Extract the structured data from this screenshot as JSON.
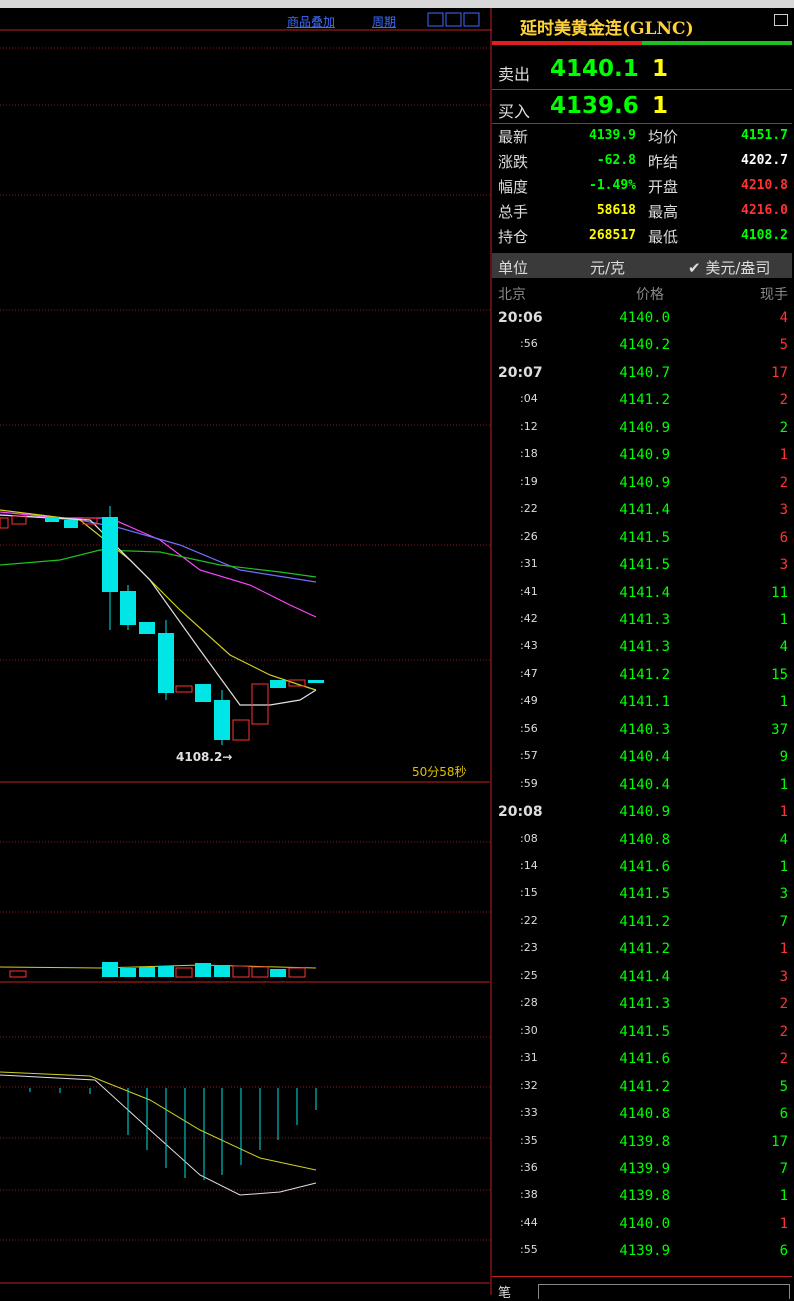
{
  "toolbar": {
    "overlay": "商品叠加",
    "period": "周期"
  },
  "chart": {
    "low_marker": "4108.2→",
    "countdown": "50分58秒"
  },
  "quote": {
    "title": "延时美黄金连(GLNC)",
    "sell": {
      "label": "卖出",
      "price": "4140.1",
      "qty": 1
    },
    "buy": {
      "label": "买入",
      "price": "4139.6",
      "qty": 1
    },
    "stats": [
      {
        "label": "最新",
        "value": "4139.9",
        "color": "#00ff00"
      },
      {
        "label": "均价",
        "value": "4151.7",
        "color": "#00ff00"
      },
      {
        "label": "涨跌",
        "value": "-62.8",
        "color": "#00ff00"
      },
      {
        "label": "昨结",
        "value": "4202.7",
        "color": "#ffffff"
      },
      {
        "label": "幅度",
        "value": "-1.49%",
        "color": "#00ff00"
      },
      {
        "label": "开盘",
        "value": "4210.8",
        "color": "#ff3333"
      },
      {
        "label": "总手",
        "value": "58618",
        "color": "#ffff00"
      },
      {
        "label": "最高",
        "value": "4216.0",
        "color": "#ff3333"
      },
      {
        "label": "持仓",
        "value": "268517",
        "color": "#ffff00"
      },
      {
        "label": "最低",
        "value": "4108.2",
        "color": "#00ff00"
      }
    ],
    "unit": {
      "label": "单位",
      "option1": "元/克",
      "option2": "✔ 美元/盎司"
    },
    "ticks_header": {
      "time": "北京",
      "price": "价格",
      "volume": "现手"
    },
    "ticks": [
      {
        "time": "20:06",
        "price": "4140.0",
        "volume": 4,
        "color": "#ff3333"
      },
      {
        "time": ":56",
        "price": "4140.2",
        "volume": 5,
        "color": "#ff3333"
      },
      {
        "time": "20:07",
        "price": "4140.7",
        "volume": 17,
        "color": "#ff3333"
      },
      {
        "time": ":04",
        "price": "4141.2",
        "volume": 2,
        "color": "#ff3333"
      },
      {
        "time": ":12",
        "price": "4140.9",
        "volume": 2,
        "color": "#00ff00"
      },
      {
        "time": ":18",
        "price": "4140.9",
        "volume": 1,
        "color": "#ff3333"
      },
      {
        "time": ":19",
        "price": "4140.9",
        "volume": 2,
        "color": "#ff3333"
      },
      {
        "time": ":22",
        "price": "4141.4",
        "volume": 3,
        "color": "#ff3333"
      },
      {
        "time": ":26",
        "price": "4141.5",
        "volume": 6,
        "color": "#ff3333"
      },
      {
        "time": ":31",
        "price": "4141.5",
        "volume": 3,
        "color": "#ff3333"
      },
      {
        "time": ":41",
        "price": "4141.4",
        "volume": 11,
        "color": "#00ff00"
      },
      {
        "time": ":42",
        "price": "4141.3",
        "volume": 1,
        "color": "#00ff00"
      },
      {
        "time": ":43",
        "price": "4141.3",
        "volume": 4,
        "color": "#00ff00"
      },
      {
        "time": ":47",
        "price": "4141.2",
        "volume": 15,
        "color": "#00ff00"
      },
      {
        "time": ":49",
        "price": "4141.1",
        "volume": 1,
        "color": "#00ff00"
      },
      {
        "time": ":56",
        "price": "4140.3",
        "volume": 37,
        "color": "#00ff00"
      },
      {
        "time": ":57",
        "price": "4140.4",
        "volume": 9,
        "color": "#00ff00"
      },
      {
        "time": ":59",
        "price": "4140.4",
        "volume": 1,
        "color": "#00ff00"
      },
      {
        "time": "20:08",
        "price": "4140.9",
        "volume": 1,
        "color": "#ff3333"
      },
      {
        "time": ":08",
        "price": "4140.8",
        "volume": 4,
        "color": "#00ff00"
      },
      {
        "time": ":14",
        "price": "4141.6",
        "volume": 1,
        "color": "#00ff00"
      },
      {
        "time": ":15",
        "price": "4141.5",
        "volume": 3,
        "color": "#00ff00"
      },
      {
        "time": ":22",
        "price": "4141.2",
        "volume": 7,
        "color": "#00ff00"
      },
      {
        "time": ":23",
        "price": "4141.2",
        "volume": 1,
        "color": "#ff3333"
      },
      {
        "time": ":25",
        "price": "4141.4",
        "volume": 3,
        "color": "#ff3333"
      },
      {
        "time": ":28",
        "price": "4141.3",
        "volume": 2,
        "color": "#ff3333"
      },
      {
        "time": ":30",
        "price": "4141.5",
        "volume": 2,
        "color": "#ff3333"
      },
      {
        "time": ":31",
        "price": "4141.6",
        "volume": 2,
        "color": "#ff3333"
      },
      {
        "time": ":32",
        "price": "4141.2",
        "volume": 5,
        "color": "#00ff00"
      },
      {
        "time": ":33",
        "price": "4140.8",
        "volume": 6,
        "color": "#00ff00"
      },
      {
        "time": ":35",
        "price": "4139.8",
        "volume": 17,
        "color": "#00ff00"
      },
      {
        "time": ":36",
        "price": "4139.9",
        "volume": 7,
        "color": "#00ff00"
      },
      {
        "time": ":38",
        "price": "4139.8",
        "volume": 1,
        "color": "#00ff00"
      },
      {
        "time": ":44",
        "price": "4140.0",
        "volume": 1,
        "color": "#ff3333"
      },
      {
        "time": ":55",
        "price": "4139.9",
        "volume": 6,
        "color": "#00ff00"
      }
    ],
    "footer": "笔"
  }
}
